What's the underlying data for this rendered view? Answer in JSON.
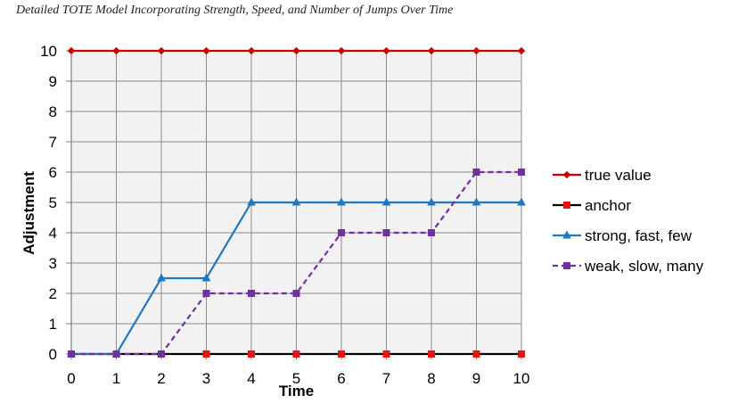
{
  "page": {
    "title": "Detailed TOTE Model Incorporating Strength, Speed, and Number of Jumps Over Time"
  },
  "chart_data": {
    "type": "line",
    "title": "Detailed TOTE Model Incorporating Strength, Speed, and Number of Jumps Over Time",
    "xlabel": "Time",
    "ylabel": "Adjustment",
    "x": [
      0,
      1,
      2,
      3,
      4,
      5,
      6,
      7,
      8,
      9,
      10
    ],
    "xlim": [
      0,
      10
    ],
    "ylim": [
      0,
      10
    ],
    "xticks": [
      "0",
      "1",
      "2",
      "3",
      "4",
      "5",
      "6",
      "7",
      "8",
      "9",
      "10"
    ],
    "yticks": [
      "0",
      "1",
      "2",
      "3",
      "4",
      "5",
      "6",
      "7",
      "8",
      "9",
      "10"
    ],
    "grid": true,
    "legend_position": "right",
    "plot_background": "#f2f2f2",
    "series": [
      {
        "name": "true value",
        "values": [
          10,
          10,
          10,
          10,
          10,
          10,
          10,
          10,
          10,
          10,
          10
        ],
        "color": "#cc0000",
        "marker": "diamond",
        "dashed": false
      },
      {
        "name": "anchor",
        "values": [
          0,
          0,
          0,
          0,
          0,
          0,
          0,
          0,
          0,
          0,
          0
        ],
        "color": "#000000",
        "marker_color": "#ee1111",
        "marker": "square",
        "dashed": false
      },
      {
        "name": "strong, fast, few",
        "values": [
          0,
          0,
          2.5,
          2.5,
          5,
          5,
          5,
          5,
          5,
          5,
          5
        ],
        "color": "#1f78c1",
        "marker": "triangle",
        "dashed": false
      },
      {
        "name": "weak, slow, many",
        "values": [
          0,
          0,
          0,
          2,
          2,
          2,
          4,
          4,
          4,
          6,
          6
        ],
        "color": "#7030a0",
        "marker": "square",
        "dashed": true
      }
    ]
  }
}
